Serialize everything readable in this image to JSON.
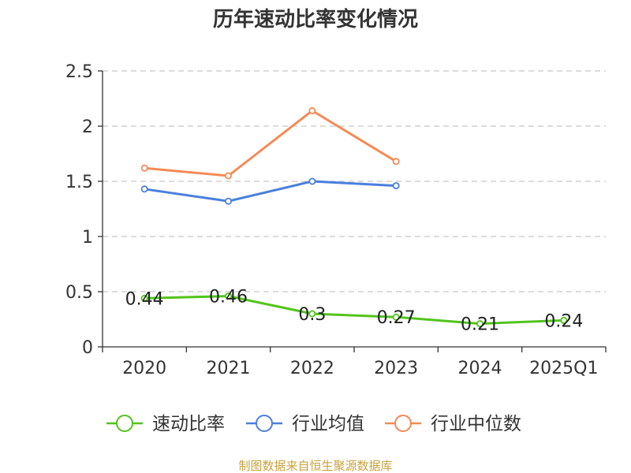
{
  "chart_data": {
    "type": "line",
    "title": "历年速动比率变化情况",
    "categories": [
      "2020",
      "2021",
      "2022",
      "2023",
      "2024",
      "2025Q1"
    ],
    "ylim": [
      0,
      2.5
    ],
    "yticks": [
      "0",
      "0.5",
      "1",
      "1.5",
      "2",
      "2.5"
    ],
    "grid": true,
    "legend_position": "bottom",
    "series": [
      {
        "name": "速动比率",
        "color": "#52c41a",
        "show_labels": true,
        "values": [
          0.44,
          0.46,
          0.3,
          0.27,
          0.21,
          0.24
        ],
        "labels": [
          "0.44",
          "0.46",
          "0.3",
          "0.27",
          "0.21",
          "0.24"
        ]
      },
      {
        "name": "行业均值",
        "color": "#4a7fdc",
        "show_labels": false,
        "values": [
          1.43,
          1.32,
          1.5,
          1.46,
          null,
          null
        ]
      },
      {
        "name": "行业中位数",
        "color": "#f58a55",
        "show_labels": false,
        "values": [
          1.62,
          1.55,
          2.14,
          1.68,
          null,
          null
        ]
      }
    ]
  },
  "source": "制图数据来自恒生聚源数据库"
}
